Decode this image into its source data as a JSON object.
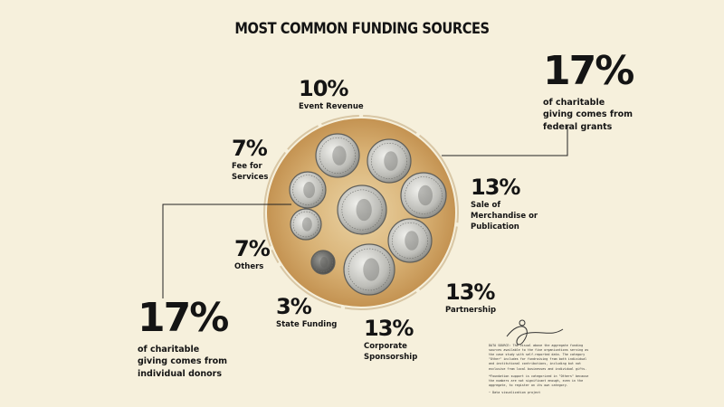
{
  "chart_data": {
    "type": "pie",
    "title": "MOST COMMON FUNDING SOURCES",
    "slices": [
      {
        "label": "Event Revenue",
        "value": 10
      },
      {
        "label": "of charitable giving comes from federal grants",
        "value": 17
      },
      {
        "label": "Sale of Merchandise or Publication",
        "value": 13
      },
      {
        "label": "Partnership",
        "value": 13
      },
      {
        "label": "Corporate Sponsorship",
        "value": 13
      },
      {
        "label": "State Funding",
        "value": 3
      },
      {
        "label": "of charitable giving comes from individual donors",
        "value": 17
      },
      {
        "label": "Others",
        "value": 7
      },
      {
        "label": "Fee for Services",
        "value": 7
      }
    ],
    "value_format": "percent"
  },
  "labels": {
    "event": {
      "pct": "10%",
      "desc": "Event Revenue"
    },
    "federal": {
      "pct": "17%",
      "desc": "of charitable giving comes from federal grants"
    },
    "merch": {
      "pct": "13%",
      "desc": "Sale of Merchandise or Publication"
    },
    "partnership": {
      "pct": "13%",
      "desc": "Partnership"
    },
    "corporate": {
      "pct": "13%",
      "desc": "Corporate Sponsorship"
    },
    "state": {
      "pct": "3%",
      "desc": "State Funding"
    },
    "donors": {
      "pct": "17%",
      "desc": "of charitable giving comes from individual donors"
    },
    "others": {
      "pct": "7%",
      "desc": "Others"
    },
    "fee": {
      "pct": "7%",
      "desc": "Fee for Services"
    }
  },
  "notes": {
    "p1": "DATA SOURCE: The visual above the aggregate funding sources available to the five organizations serving as the case study with self-reported data. The category \"Other\" includes for fundraising from both individual and institutional contributions, including but not exclusive from local businesses and individual gifts.",
    "p2": "*Foundation support is categorized in \"Others\" because the numbers are not significant enough, even in the aggregate, to register on its own category.",
    "p3": "~ Data visualization project"
  },
  "colors": {
    "background": "#f6f0dc",
    "disc": "#d9b47a",
    "coin_face": "#c9c9c4",
    "coin_edge": "#7a7a76",
    "line": "#222222"
  }
}
